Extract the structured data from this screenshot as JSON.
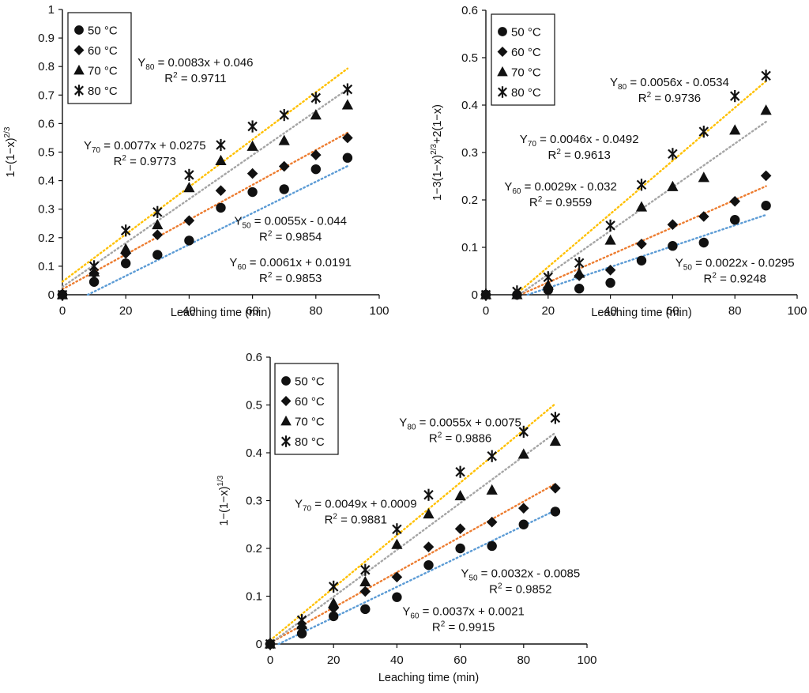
{
  "chart_data": [
    {
      "type": "scatter",
      "title": "",
      "xlabel": "Leaching time (min)",
      "ylabel": "1−(1−x)^{2/3}",
      "ylabel_base": "1−(1−x)",
      "ylabel_sup": "2/3",
      "xlim": [
        0,
        100
      ],
      "ylim": [
        0,
        1
      ],
      "xticks": [
        "0",
        "20",
        "40",
        "60",
        "80",
        "100"
      ],
      "yticks": [
        "0",
        "0.1",
        "0.2",
        "0.3",
        "0.4",
        "0.5",
        "0.6",
        "0.7",
        "0.8",
        "0.9",
        "1"
      ],
      "legend": "top-left",
      "x": [
        0,
        10,
        20,
        30,
        40,
        50,
        60,
        70,
        80,
        90
      ],
      "series": [
        {
          "name": "50 °C",
          "marker": "circle",
          "trend_color": "#5b9bd5",
          "values": [
            0,
            0.045,
            0.11,
            0.14,
            0.19,
            0.305,
            0.36,
            0.37,
            0.44,
            0.48
          ],
          "fit": {
            "slope": 0.0055,
            "intercept": -0.044
          }
        },
        {
          "name": "60 °C",
          "marker": "diamond",
          "trend_color": "#ed7d31",
          "values": [
            0,
            0.075,
            0.145,
            0.21,
            0.26,
            0.365,
            0.425,
            0.45,
            0.49,
            0.55
          ],
          "fit": {
            "slope": 0.0061,
            "intercept": 0.0191
          }
        },
        {
          "name": "70 °C",
          "marker": "triangle",
          "trend_color": "#a5a5a5",
          "values": [
            0,
            0.08,
            0.16,
            0.245,
            0.375,
            0.47,
            0.52,
            0.54,
            0.63,
            0.665
          ],
          "fit": {
            "slope": 0.0077,
            "intercept": 0.0275
          }
        },
        {
          "name": "80 °C",
          "marker": "asterisk",
          "trend_color": "#ffc000",
          "values": [
            0,
            0.1,
            0.225,
            0.29,
            0.42,
            0.525,
            0.59,
            0.63,
            0.69,
            0.72
          ],
          "fit": {
            "slope": 0.0083,
            "intercept": 0.046
          }
        }
      ],
      "annotations": [
        {
          "sub": "80",
          "eq": " = 0.0083x + 0.046",
          "r2": "R² = 0.9711",
          "r2_base": "R",
          "r2_sup": "2",
          "r2_val": " = 0.9711",
          "at": [
            42,
            0.8
          ]
        },
        {
          "sub": "70",
          "eq": " = 0.0077x + 0.0275",
          "r2": "R² = 0.9773",
          "r2_base": "R",
          "r2_sup": "2",
          "r2_val": " = 0.9773",
          "at": [
            26,
            0.51
          ]
        },
        {
          "sub": "50",
          "eq": " = 0.0055x - 0.044",
          "r2": "R² = 0.9854",
          "r2_base": "R",
          "r2_sup": "2",
          "r2_val": " = 0.9854",
          "at": [
            72,
            0.245
          ]
        },
        {
          "sub": "60",
          "eq": " = 0.0061x + 0.0191",
          "r2": "R² = 0.9853",
          "r2_base": "R",
          "r2_sup": "2",
          "r2_val": " = 0.9853",
          "at": [
            72,
            0.1
          ]
        }
      ]
    },
    {
      "type": "scatter",
      "title": "",
      "xlabel": "Leaching time (min)",
      "ylabel": "1−3(1−x)^{2/3}+2(1−x)",
      "ylabel_base": "1−3(1−x)",
      "ylabel_sup": "2/3",
      "ylabel_tail": "+2(1−x)",
      "xlim": [
        0,
        100
      ],
      "ylim": [
        0,
        0.6
      ],
      "xticks": [
        "0",
        "20",
        "40",
        "60",
        "80",
        "100"
      ],
      "yticks": [
        "0",
        "0.1",
        "0.2",
        "0.3",
        "0.4",
        "0.5",
        "0.6"
      ],
      "legend": "top-left",
      "x": [
        0,
        10,
        20,
        30,
        40,
        50,
        60,
        70,
        80,
        90
      ],
      "series": [
        {
          "name": "50 °C",
          "marker": "circle",
          "trend_color": "#5b9bd5",
          "values": [
            0,
            0.0,
            0.01,
            0.013,
            0.025,
            0.072,
            0.103,
            0.11,
            0.158,
            0.188
          ],
          "fit": {
            "slope": 0.0022,
            "intercept": -0.0295
          }
        },
        {
          "name": "60 °C",
          "marker": "diamond",
          "trend_color": "#ed7d31",
          "values": [
            0,
            0.0,
            0.015,
            0.04,
            0.052,
            0.107,
            0.148,
            0.165,
            0.197,
            0.251
          ],
          "fit": {
            "slope": 0.0029,
            "intercept": -0.032
          }
        },
        {
          "name": "70 °C",
          "marker": "triangle",
          "trend_color": "#a5a5a5",
          "values": [
            0,
            0.0,
            0.02,
            0.045,
            0.115,
            0.185,
            0.228,
            0.247,
            0.347,
            0.389
          ],
          "fit": {
            "slope": 0.0046,
            "intercept": -0.0492
          }
        },
        {
          "name": "80 °C",
          "marker": "asterisk",
          "trend_color": "#ffc000",
          "values": [
            0,
            0.007,
            0.037,
            0.067,
            0.146,
            0.232,
            0.297,
            0.344,
            0.419,
            0.462
          ],
          "fit": {
            "slope": 0.0056,
            "intercept": -0.0534
          }
        }
      ],
      "annotations": [
        {
          "sub": "80",
          "eq": " = 0.0056x - 0.0534",
          "r2": "R² = 0.9736",
          "r2_base": "R",
          "r2_sup": "2",
          "r2_val": " = 0.9736",
          "at": [
            59,
            0.44
          ]
        },
        {
          "sub": "70",
          "eq": " = 0.0046x - 0.0492",
          "r2": "R² = 0.9613",
          "r2_base": "R",
          "r2_sup": "2",
          "r2_val": " = 0.9613",
          "at": [
            30,
            0.32
          ]
        },
        {
          "sub": "60",
          "eq": " = 0.0029x - 0.032",
          "r2": "R² = 0.9559",
          "r2_base": "R",
          "r2_sup": "2",
          "r2_val": " = 0.9559",
          "at": [
            24,
            0.22
          ]
        },
        {
          "sub": "50",
          "eq": " = 0.0022x - 0.0295",
          "r2": "R² = 0.9248",
          "r2_base": "R",
          "r2_sup": "2",
          "r2_val": " = 0.9248",
          "at": [
            80,
            0.059
          ]
        }
      ]
    },
    {
      "type": "scatter",
      "title": "",
      "xlabel": "Leaching time (min)",
      "ylabel": "1−(1−x)^{1/3}",
      "ylabel_base": "1−(1−x)",
      "ylabel_sup": "1/3",
      "xlim": [
        0,
        100
      ],
      "ylim": [
        0,
        0.6
      ],
      "xticks": [
        "0",
        "20",
        "40",
        "60",
        "80",
        "100"
      ],
      "yticks": [
        "0",
        "0.1",
        "0.2",
        "0.3",
        "0.4",
        "0.5",
        "0.6"
      ],
      "legend": "top-left",
      "x": [
        0,
        10,
        20,
        30,
        40,
        50,
        60,
        70,
        80,
        90
      ],
      "series": [
        {
          "name": "50 °C",
          "marker": "circle",
          "trend_color": "#5b9bd5",
          "values": [
            0,
            0.022,
            0.058,
            0.073,
            0.098,
            0.165,
            0.2,
            0.205,
            0.25,
            0.277
          ],
          "fit": {
            "slope": 0.0032,
            "intercept": -0.0085
          }
        },
        {
          "name": "60 °C",
          "marker": "diamond",
          "trend_color": "#ed7d31",
          "values": [
            0,
            0.035,
            0.075,
            0.11,
            0.14,
            0.203,
            0.241,
            0.255,
            0.284,
            0.326
          ],
          "fit": {
            "slope": 0.0037,
            "intercept": 0.0021
          }
        },
        {
          "name": "70 °C",
          "marker": "triangle",
          "trend_color": "#a5a5a5",
          "values": [
            0,
            0.04,
            0.085,
            0.13,
            0.208,
            0.272,
            0.31,
            0.322,
            0.397,
            0.424
          ],
          "fit": {
            "slope": 0.0049,
            "intercept": 0.0009
          }
        },
        {
          "name": "80 °C",
          "marker": "asterisk",
          "trend_color": "#ffc000",
          "values": [
            0,
            0.05,
            0.12,
            0.155,
            0.24,
            0.312,
            0.36,
            0.393,
            0.444,
            0.473
          ],
          "fit": {
            "slope": 0.0055,
            "intercept": 0.0075
          }
        }
      ],
      "annotations": [
        {
          "sub": "80",
          "eq": " = 0.0055x + 0.0075",
          "r2": "R² = 0.9886",
          "r2_base": "R",
          "r2_sup": "2",
          "r2_val": " = 0.9886",
          "at": [
            60,
            0.455
          ]
        },
        {
          "sub": "70",
          "eq": " = 0.0049x + 0.0009",
          "r2": "R² = 0.9881",
          "r2_base": "R",
          "r2_sup": "2",
          "r2_val": " = 0.9881",
          "at": [
            27,
            0.285
          ]
        },
        {
          "sub": "50",
          "eq": " = 0.0032x - 0.0085",
          "r2": "R² = 0.9852",
          "r2_base": "R",
          "r2_sup": "2",
          "r2_val": " = 0.9852",
          "at": [
            79,
            0.14
          ]
        },
        {
          "sub": "60",
          "eq": " = 0.0037x + 0.0021",
          "r2": "R² = 0.9915",
          "r2_base": "R",
          "r2_sup": "2",
          "r2_val": " = 0.9915",
          "at": [
            61,
            0.06
          ]
        }
      ]
    }
  ],
  "annotation_prefix": "Y"
}
